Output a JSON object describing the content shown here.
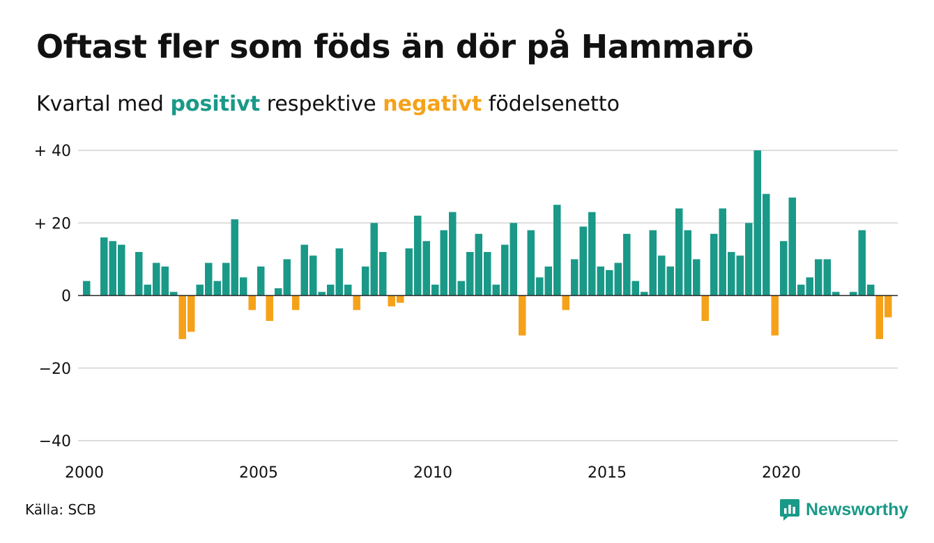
{
  "header": {
    "title": "Oftast fler som föds än dör på Hammarö",
    "subtitle_prefix": "Kvartal med",
    "subtitle_positive": "positivt",
    "subtitle_middle": "respektive",
    "subtitle_negative": "negativt",
    "subtitle_suffix": "födelsenetto"
  },
  "footer": {
    "source": "Källa: SCB",
    "brand": "Newsworthy"
  },
  "colors": {
    "positive": "#1a9988",
    "negative": "#f5a21a",
    "grid": "#dddddd",
    "axis": "#222222"
  },
  "chart_data": {
    "type": "bar",
    "title": "Oftast fler som föds än dör på Hammarö",
    "subtitle": "Kvartal med positivt respektive negativt födelsenetto",
    "x_start": 2000.0,
    "x_step": 0.25,
    "values": [
      4,
      0,
      16,
      15,
      14,
      0,
      12,
      3,
      9,
      8,
      1,
      -12,
      -10,
      3,
      9,
      4,
      9,
      21,
      5,
      -4,
      8,
      -7,
      2,
      10,
      -4,
      14,
      11,
      1,
      3,
      13,
      3,
      -4,
      8,
      20,
      12,
      -3,
      -2,
      13,
      22,
      15,
      3,
      18,
      23,
      4,
      12,
      17,
      12,
      3,
      14,
      20,
      -11,
      18,
      5,
      8,
      25,
      -4,
      10,
      19,
      23,
      8,
      7,
      9,
      17,
      4,
      1,
      18,
      11,
      8,
      24,
      18,
      10,
      -7,
      17,
      24,
      12,
      11,
      20,
      40,
      28,
      -11,
      15,
      27,
      3,
      5,
      10,
      10,
      1,
      0,
      1,
      18,
      3,
      -12,
      -6
    ],
    "x_ticks": [
      2000,
      2005,
      2010,
      2015,
      2020
    ],
    "y_ticks": [
      40,
      20,
      0,
      -20,
      -40
    ],
    "y_tick_labels": [
      "+ 40",
      "+ 20",
      "0",
      "−20",
      "−40"
    ],
    "ylim": [
      -40,
      40
    ],
    "grid": true,
    "legend": "none"
  }
}
